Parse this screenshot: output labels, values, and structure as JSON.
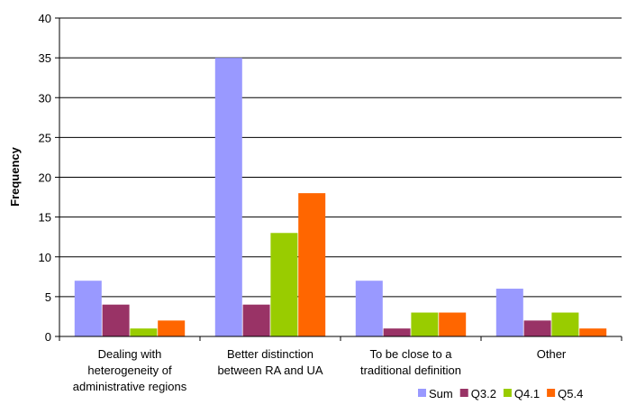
{
  "chart_data": {
    "type": "bar",
    "ylabel": "Frequency",
    "xlabel": "",
    "ylim": [
      0,
      40
    ],
    "ytick_step": 5,
    "grid": "horizontal",
    "legend_position": "bottom-right",
    "categories": [
      [
        "Dealing with",
        "heterogeneity of",
        "administrative regions"
      ],
      [
        "Better distinction",
        "between RA and UA"
      ],
      [
        "To be close to a",
        "traditional definition"
      ],
      [
        "Other"
      ]
    ],
    "series": [
      {
        "name": "Sum",
        "color": "#9999ff",
        "values": [
          7,
          35,
          7,
          6
        ]
      },
      {
        "name": "Q3.2",
        "color": "#993366",
        "values": [
          4,
          4,
          1,
          2
        ]
      },
      {
        "name": "Q4.1",
        "color": "#99cc00",
        "values": [
          1,
          13,
          3,
          3
        ]
      },
      {
        "name": "Q5.4",
        "color": "#ff6600",
        "values": [
          2,
          18,
          3,
          1
        ]
      }
    ]
  }
}
